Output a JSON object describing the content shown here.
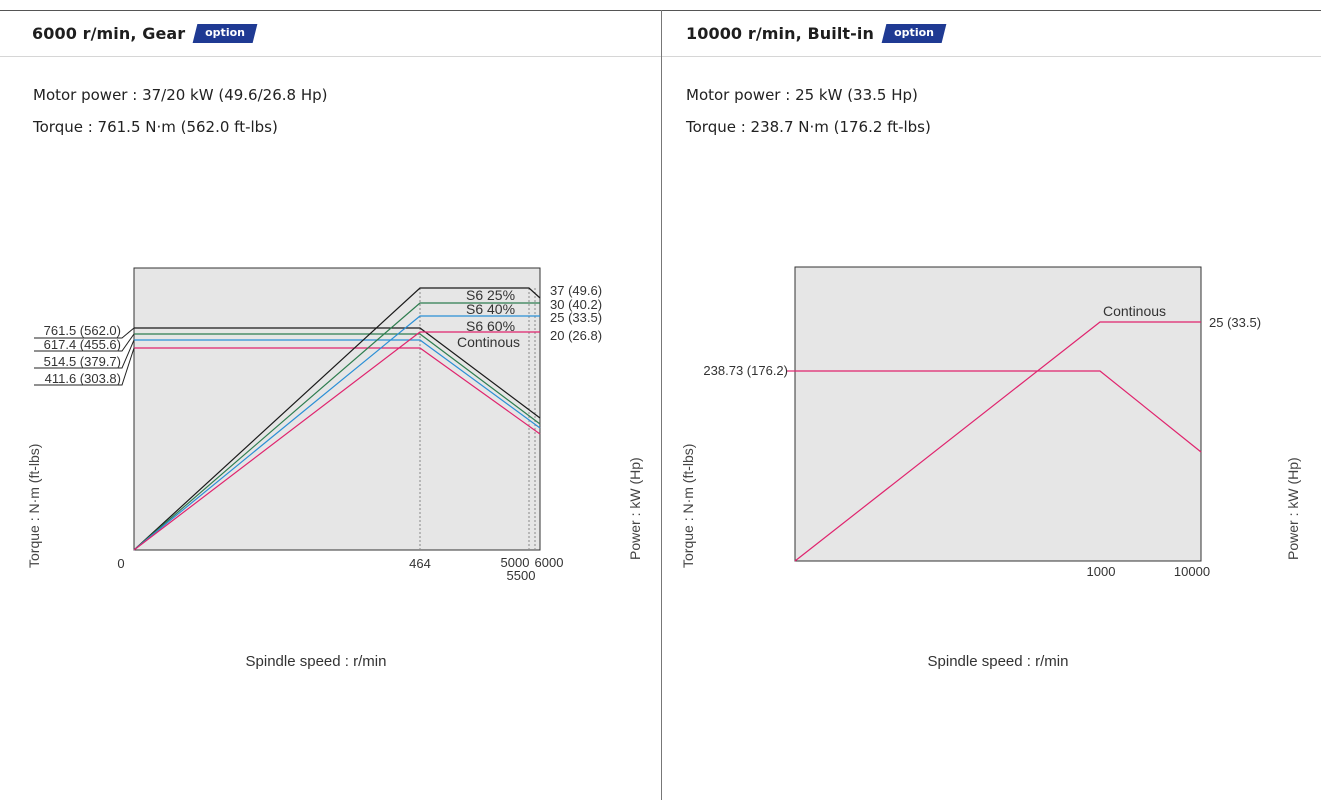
{
  "panels": [
    {
      "title": "6000 r/min, Gear",
      "badge": "option",
      "motor_power": "Motor power : 37/20 kW (49.6/26.8 Hp)",
      "torque": "Torque : 761.5 N·m (562.0 ft-lbs)"
    },
    {
      "title": "10000 r/min, Built-in",
      "badge": "option",
      "motor_power": "Motor power : 25 kW (33.5 Hp)",
      "torque": "Torque : 238.7 N·m (176.2 ft-lbs)"
    }
  ],
  "colors": {
    "plot_bg": "#e6e6e6",
    "s6_25": "#1a1a1a",
    "s6_40": "#2e7d4f",
    "s6_60": "#2b8fd6",
    "continous": "#e0246e",
    "ref_line": "#888888"
  },
  "chart_data": [
    {
      "type": "line",
      "xlabel": "Spindle speed : r/min",
      "ylabel_left": "Torque : N·m (ft-lbs)",
      "ylabel_right": "Power : kW (Hp)",
      "x_ticks": [
        "0",
        "464",
        "5000",
        "5500",
        "6000"
      ],
      "torque_labels": [
        "761.5 (562.0)",
        "617.4 (455.6)",
        "514.5 (379.7)",
        "411.6 (303.8)"
      ],
      "power_labels": [
        "37 (49.6)",
        "30 (40.2)",
        "25 (33.5)",
        "20 (26.8)"
      ],
      "series": [
        {
          "name": "S6 25%",
          "torque_nm": 761.5,
          "power_kw": 37,
          "color_key": "s6_25"
        },
        {
          "name": "S6 40%",
          "torque_nm": 617.4,
          "power_kw": 30,
          "color_key": "s6_40"
        },
        {
          "name": "S6 60%",
          "torque_nm": 514.5,
          "power_kw": 25,
          "color_key": "s6_60"
        },
        {
          "name": "Continous",
          "torque_nm": 411.6,
          "power_kw": 20,
          "color_key": "continous"
        }
      ]
    },
    {
      "type": "line",
      "xlabel": "Spindle speed : r/min",
      "ylabel_left": "Torque : N·m (ft-lbs)",
      "ylabel_right": "Power : kW (Hp)",
      "x_ticks": [
        "1000",
        "10000"
      ],
      "torque_labels": [
        "238.73 (176.2)"
      ],
      "power_labels": [
        "25 (33.5)"
      ],
      "series": [
        {
          "name": "Continous",
          "torque_nm": 238.73,
          "power_kw": 25,
          "color_key": "continous"
        }
      ]
    }
  ]
}
